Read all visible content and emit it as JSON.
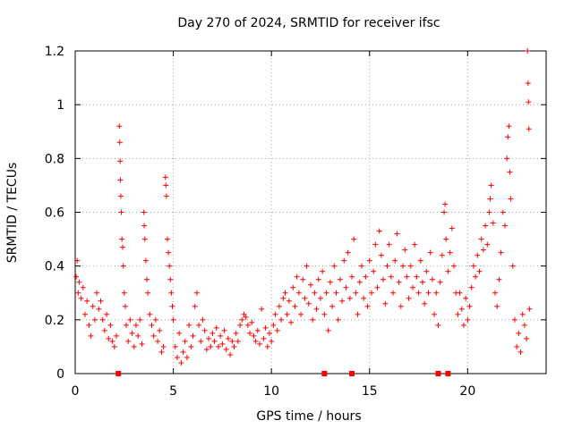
{
  "chart_data": {
    "type": "scatter",
    "title": "Day 270 of 2024, SRMTID for receiver ifsc",
    "xlabel": "GPS time / hours",
    "ylabel": "SRMTID / TECUs",
    "xlim": [
      0,
      24
    ],
    "ylim": [
      0,
      1.2
    ],
    "xticks": [
      0,
      5,
      10,
      15,
      20
    ],
    "yticks": [
      0,
      0.2,
      0.4,
      0.6,
      0.8,
      1,
      1.2
    ],
    "ytick_labels": [
      "0",
      "0.2",
      "0.4",
      "0.6",
      "0.8",
      "1",
      "1.2"
    ],
    "grid": true,
    "marker": "plus",
    "color": "#ff0000",
    "series": [
      {
        "name": "SRMTID",
        "points": [
          [
            0.05,
            0.36
          ],
          [
            0.1,
            0.42
          ],
          [
            0.15,
            0.3
          ],
          [
            0.2,
            0.34
          ],
          [
            0.3,
            0.28
          ],
          [
            0.4,
            0.32
          ],
          [
            0.5,
            0.22
          ],
          [
            0.6,
            0.27
          ],
          [
            0.7,
            0.18
          ],
          [
            0.8,
            0.14
          ],
          [
            0.9,
            0.25
          ],
          [
            1.0,
            0.2
          ],
          [
            1.1,
            0.3
          ],
          [
            1.2,
            0.24
          ],
          [
            1.3,
            0.27
          ],
          [
            1.4,
            0.2
          ],
          [
            1.5,
            0.16
          ],
          [
            1.6,
            0.22
          ],
          [
            1.7,
            0.13
          ],
          [
            1.8,
            0.18
          ],
          [
            1.9,
            0.12
          ],
          [
            2.0,
            0.1
          ],
          [
            2.1,
            0.14
          ],
          [
            2.25,
            0.92
          ],
          [
            2.27,
            0.86
          ],
          [
            2.29,
            0.79
          ],
          [
            2.3,
            0.72
          ],
          [
            2.32,
            0.66
          ],
          [
            2.35,
            0.6
          ],
          [
            2.38,
            0.5
          ],
          [
            2.42,
            0.47
          ],
          [
            2.45,
            0.4
          ],
          [
            2.5,
            0.3
          ],
          [
            2.55,
            0.25
          ],
          [
            2.6,
            0.18
          ],
          [
            2.7,
            0.12
          ],
          [
            2.8,
            0.2
          ],
          [
            2.9,
            0.15
          ],
          [
            3.0,
            0.1
          ],
          [
            3.1,
            0.18
          ],
          [
            3.2,
            0.14
          ],
          [
            3.3,
            0.2
          ],
          [
            3.4,
            0.11
          ],
          [
            3.5,
            0.6
          ],
          [
            3.52,
            0.55
          ],
          [
            3.55,
            0.5
          ],
          [
            3.6,
            0.42
          ],
          [
            3.65,
            0.35
          ],
          [
            3.7,
            0.3
          ],
          [
            3.8,
            0.22
          ],
          [
            3.9,
            0.18
          ],
          [
            4.0,
            0.14
          ],
          [
            4.1,
            0.2
          ],
          [
            4.2,
            0.12
          ],
          [
            4.3,
            0.16
          ],
          [
            4.4,
            0.08
          ],
          [
            4.5,
            0.1
          ],
          [
            4.6,
            0.73
          ],
          [
            4.62,
            0.7
          ],
          [
            4.65,
            0.66
          ],
          [
            4.7,
            0.5
          ],
          [
            4.75,
            0.45
          ],
          [
            4.8,
            0.4
          ],
          [
            4.85,
            0.35
          ],
          [
            4.9,
            0.3
          ],
          [
            4.95,
            0.25
          ],
          [
            5.0,
            0.2
          ],
          [
            5.1,
            0.1
          ],
          [
            5.2,
            0.06
          ],
          [
            5.3,
            0.15
          ],
          [
            5.4,
            0.04
          ],
          [
            5.5,
            0.08
          ],
          [
            5.6,
            0.12
          ],
          [
            5.7,
            0.06
          ],
          [
            5.8,
            0.18
          ],
          [
            5.9,
            0.1
          ],
          [
            6.0,
            0.14
          ],
          [
            6.1,
            0.25
          ],
          [
            6.2,
            0.3
          ],
          [
            6.3,
            0.18
          ],
          [
            6.4,
            0.12
          ],
          [
            6.5,
            0.2
          ],
          [
            6.6,
            0.16
          ],
          [
            6.7,
            0.09
          ],
          [
            6.8,
            0.13
          ],
          [
            6.9,
            0.1
          ],
          [
            7.0,
            0.15
          ],
          [
            7.1,
            0.12
          ],
          [
            7.2,
            0.17
          ],
          [
            7.3,
            0.1
          ],
          [
            7.4,
            0.14
          ],
          [
            7.5,
            0.11
          ],
          [
            7.6,
            0.16
          ],
          [
            7.7,
            0.09
          ],
          [
            7.8,
            0.13
          ],
          [
            7.9,
            0.07
          ],
          [
            8.0,
            0.12
          ],
          [
            8.1,
            0.1
          ],
          [
            8.2,
            0.15
          ],
          [
            8.3,
            0.12
          ],
          [
            8.4,
            0.18
          ],
          [
            8.5,
            0.2
          ],
          [
            8.6,
            0.22
          ],
          [
            8.7,
            0.21
          ],
          [
            8.8,
            0.18
          ],
          [
            8.9,
            0.15
          ],
          [
            9.0,
            0.19
          ],
          [
            9.1,
            0.14
          ],
          [
            9.2,
            0.12
          ],
          [
            9.3,
            0.16
          ],
          [
            9.4,
            0.11
          ],
          [
            9.5,
            0.24
          ],
          [
            9.6,
            0.13
          ],
          [
            9.7,
            0.17
          ],
          [
            9.8,
            0.1
          ],
          [
            9.9,
            0.15
          ],
          [
            10.0,
            0.12
          ],
          [
            10.1,
            0.18
          ],
          [
            10.2,
            0.22
          ],
          [
            10.3,
            0.16
          ],
          [
            10.4,
            0.25
          ],
          [
            10.5,
            0.2
          ],
          [
            10.6,
            0.28
          ],
          [
            10.7,
            0.3
          ],
          [
            10.8,
            0.22
          ],
          [
            10.9,
            0.27
          ],
          [
            11.0,
            0.19
          ],
          [
            11.1,
            0.32
          ],
          [
            11.2,
            0.25
          ],
          [
            11.3,
            0.36
          ],
          [
            11.4,
            0.3
          ],
          [
            11.5,
            0.22
          ],
          [
            11.6,
            0.35
          ],
          [
            11.7,
            0.28
          ],
          [
            11.8,
            0.4
          ],
          [
            11.9,
            0.26
          ],
          [
            12.0,
            0.33
          ],
          [
            12.1,
            0.2
          ],
          [
            12.2,
            0.3
          ],
          [
            12.3,
            0.24
          ],
          [
            12.4,
            0.35
          ],
          [
            12.5,
            0.28
          ],
          [
            12.6,
            0.38
          ],
          [
            12.7,
            0.22
          ],
          [
            12.8,
            0.3
          ],
          [
            12.9,
            0.16
          ],
          [
            13.0,
            0.34
          ],
          [
            13.1,
            0.25
          ],
          [
            13.2,
            0.4
          ],
          [
            13.3,
            0.3
          ],
          [
            13.4,
            0.2
          ],
          [
            13.5,
            0.35
          ],
          [
            13.6,
            0.27
          ],
          [
            13.7,
            0.42
          ],
          [
            13.8,
            0.32
          ],
          [
            13.9,
            0.45
          ],
          [
            14.0,
            0.28
          ],
          [
            14.1,
            0.36
          ],
          [
            14.2,
            0.5
          ],
          [
            14.3,
            0.3
          ],
          [
            14.4,
            0.22
          ],
          [
            14.5,
            0.34
          ],
          [
            14.6,
            0.4
          ],
          [
            14.7,
            0.28
          ],
          [
            14.8,
            0.36
          ],
          [
            14.9,
            0.25
          ],
          [
            15.0,
            0.42
          ],
          [
            15.1,
            0.3
          ],
          [
            15.2,
            0.38
          ],
          [
            15.3,
            0.48
          ],
          [
            15.4,
            0.32
          ],
          [
            15.5,
            0.53
          ],
          [
            15.6,
            0.44
          ],
          [
            15.7,
            0.35
          ],
          [
            15.8,
            0.26
          ],
          [
            15.9,
            0.4
          ],
          [
            16.0,
            0.48
          ],
          [
            16.1,
            0.36
          ],
          [
            16.2,
            0.3
          ],
          [
            16.3,
            0.42
          ],
          [
            16.4,
            0.52
          ],
          [
            16.5,
            0.34
          ],
          [
            16.6,
            0.25
          ],
          [
            16.7,
            0.4
          ],
          [
            16.8,
            0.46
          ],
          [
            16.9,
            0.36
          ],
          [
            17.0,
            0.28
          ],
          [
            17.1,
            0.4
          ],
          [
            17.2,
            0.32
          ],
          [
            17.3,
            0.48
          ],
          [
            17.4,
            0.36
          ],
          [
            17.5,
            0.3
          ],
          [
            17.6,
            0.42
          ],
          [
            17.7,
            0.34
          ],
          [
            17.8,
            0.26
          ],
          [
            17.9,
            0.38
          ],
          [
            18.0,
            0.3
          ],
          [
            18.1,
            0.45
          ],
          [
            18.2,
            0.35
          ],
          [
            18.3,
            0.22
          ],
          [
            18.4,
            0.3
          ],
          [
            18.5,
            0.18
          ],
          [
            18.6,
            0.34
          ],
          [
            18.7,
            0.44
          ],
          [
            18.8,
            0.6
          ],
          [
            18.85,
            0.63
          ],
          [
            18.9,
            0.5
          ],
          [
            19.0,
            0.38
          ],
          [
            19.1,
            0.45
          ],
          [
            19.2,
            0.54
          ],
          [
            19.3,
            0.4
          ],
          [
            19.4,
            0.3
          ],
          [
            19.5,
            0.22
          ],
          [
            19.6,
            0.3
          ],
          [
            19.7,
            0.24
          ],
          [
            19.8,
            0.18
          ],
          [
            19.9,
            0.28
          ],
          [
            20.0,
            0.2
          ],
          [
            20.1,
            0.25
          ],
          [
            20.2,
            0.32
          ],
          [
            20.3,
            0.4
          ],
          [
            20.4,
            0.36
          ],
          [
            20.5,
            0.44
          ],
          [
            20.6,
            0.38
          ],
          [
            20.7,
            0.5
          ],
          [
            20.8,
            0.46
          ],
          [
            20.9,
            0.55
          ],
          [
            21.0,
            0.48
          ],
          [
            21.1,
            0.6
          ],
          [
            21.15,
            0.65
          ],
          [
            21.2,
            0.7
          ],
          [
            21.3,
            0.56
          ],
          [
            21.4,
            0.3
          ],
          [
            21.5,
            0.25
          ],
          [
            21.6,
            0.35
          ],
          [
            21.7,
            0.45
          ],
          [
            21.8,
            0.6
          ],
          [
            21.9,
            0.55
          ],
          [
            22.0,
            0.8
          ],
          [
            22.05,
            0.88
          ],
          [
            22.1,
            0.92
          ],
          [
            22.15,
            0.75
          ],
          [
            22.2,
            0.65
          ],
          [
            22.3,
            0.4
          ],
          [
            22.4,
            0.2
          ],
          [
            22.5,
            0.1
          ],
          [
            22.6,
            0.15
          ],
          [
            22.7,
            0.08
          ],
          [
            22.8,
            0.22
          ],
          [
            22.9,
            0.18
          ],
          [
            23.0,
            0.13
          ],
          [
            23.05,
            1.2
          ],
          [
            23.08,
            1.08
          ],
          [
            23.1,
            1.01
          ],
          [
            23.12,
            0.91
          ],
          [
            23.15,
            0.24
          ]
        ],
        "zero_markers": [
          2.2,
          12.7,
          14.1,
          18.5,
          19.0
        ]
      }
    ]
  }
}
